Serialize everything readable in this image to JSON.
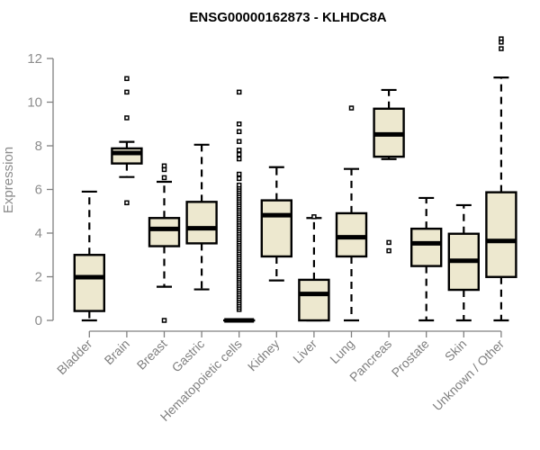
{
  "chart_data": {
    "type": "boxplot",
    "title": "ENSG00000162873 - KLHDC8A",
    "xlabel": "",
    "ylabel": "Expression",
    "ylim": [
      0,
      12
    ],
    "yticks": [
      "0",
      "2",
      "4",
      "6",
      "8",
      "10",
      "12"
    ],
    "grid": false,
    "box_color": "#ede8cf",
    "categories": [
      "Bladder",
      "Brain",
      "Breast",
      "Gastric",
      "Hematopoietic cells",
      "Kidney",
      "Liver",
      "Lung",
      "Pancreas",
      "Prostate",
      "Skin",
      "Unknown / Other"
    ],
    "boxes": [
      {
        "min": 0,
        "q1": 0.43,
        "median": 1.98,
        "q3": 3.0,
        "max": 5.9,
        "outliers": []
      },
      {
        "min": 6.57,
        "q1": 7.19,
        "median": 7.67,
        "q3": 7.88,
        "max": 8.18,
        "outliers": [
          11.08,
          10.46,
          9.28,
          5.39
        ]
      },
      {
        "min": 1.54,
        "q1": 3.4,
        "median": 4.19,
        "q3": 4.69,
        "max": 6.35,
        "outliers": [
          7.08,
          6.91,
          6.54,
          0
        ]
      },
      {
        "min": 1.42,
        "q1": 3.53,
        "median": 4.22,
        "q3": 5.43,
        "max": 8.05,
        "outliers": []
      },
      {
        "min": 0,
        "q1": 0,
        "median": 0,
        "q3": 0,
        "max": 0,
        "outliers": [
          0.5,
          0.6,
          0.7,
          0.8,
          0.9,
          1.0,
          1.1,
          1.2,
          1.3,
          1.4,
          1.5,
          1.6,
          1.7,
          1.8,
          1.9,
          2.0,
          2.1,
          2.2,
          2.3,
          2.4,
          2.5,
          2.6,
          2.7,
          2.8,
          2.9,
          3.0,
          3.1,
          3.2,
          3.3,
          3.4,
          3.5,
          3.6,
          3.7,
          3.8,
          3.9,
          4.0,
          4.1,
          4.2,
          4.3,
          4.4,
          4.5,
          4.6,
          4.7,
          4.8,
          4.9,
          5.0,
          5.1,
          5.2,
          5.3,
          5.4,
          5.5,
          5.6,
          5.7,
          5.8,
          5.9,
          6.0,
          6.1,
          6.2,
          6.5,
          6.7,
          7.4,
          7.6,
          7.8,
          8.2,
          8.65,
          9.0,
          10.46
        ]
      },
      {
        "min": 1.83,
        "q1": 2.93,
        "median": 4.82,
        "q3": 5.5,
        "max": 7.02,
        "outliers": []
      },
      {
        "min": 0,
        "q1": 0,
        "median": 1.21,
        "q3": 1.86,
        "max": 4.69,
        "outliers": [
          4.75
        ]
      },
      {
        "min": 0,
        "q1": 2.93,
        "median": 3.81,
        "q3": 4.91,
        "max": 6.94,
        "outliers": [
          9.73
        ]
      },
      {
        "min": 7.39,
        "q1": 7.5,
        "median": 8.52,
        "q3": 9.7,
        "max": 10.56,
        "outliers": [
          3.57,
          3.19
        ]
      },
      {
        "min": 0,
        "q1": 2.49,
        "median": 3.53,
        "q3": 4.2,
        "max": 5.61,
        "outliers": []
      },
      {
        "min": 0,
        "q1": 1.4,
        "median": 2.73,
        "q3": 3.97,
        "max": 5.28,
        "outliers": []
      },
      {
        "min": 0,
        "q1": 1.99,
        "median": 3.64,
        "q3": 5.87,
        "max": 11.13,
        "outliers": [
          12.9,
          12.75,
          12.45
        ]
      }
    ]
  }
}
